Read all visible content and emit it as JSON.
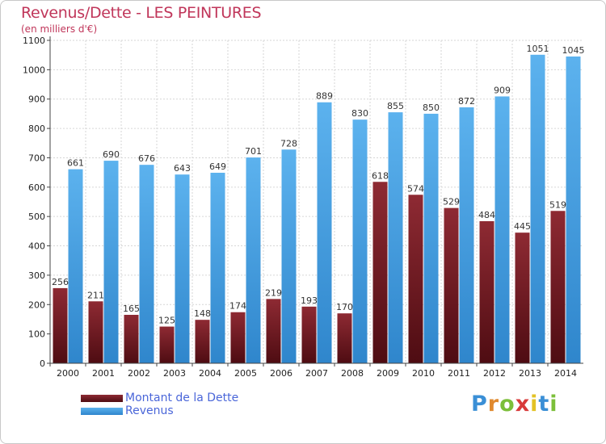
{
  "header": {
    "title": "Revenus/Dette - LES PEINTURES",
    "subtitle": "(en milliers d'€)"
  },
  "logo": {
    "text": "Proxiti",
    "letters": [
      {
        "ch": "P",
        "color": "#3a8fd6"
      },
      {
        "ch": "r",
        "color": "#e0892e"
      },
      {
        "ch": "o",
        "color": "#7cbf3a"
      },
      {
        "ch": "x",
        "color": "#d83a3a"
      },
      {
        "ch": "i",
        "color": "#e3c226"
      },
      {
        "ch": "t",
        "color": "#3a8fd6"
      },
      {
        "ch": "i",
        "color": "#7cbf3a"
      }
    ]
  },
  "colors": {
    "dette": "#7a1c24",
    "revenus": "#4aa3e4"
  },
  "chart_data": {
    "type": "bar",
    "categories": [
      "2000",
      "2001",
      "2002",
      "2003",
      "2004",
      "2005",
      "2006",
      "2007",
      "2008",
      "2009",
      "2010",
      "2011",
      "2012",
      "2013",
      "2014"
    ],
    "series": [
      {
        "name": "Montant de la Dette",
        "values": [
          256,
          211,
          165,
          125,
          148,
          174,
          219,
          193,
          170,
          618,
          574,
          529,
          484,
          445,
          519
        ]
      },
      {
        "name": "Revenus",
        "values": [
          661,
          690,
          676,
          643,
          649,
          701,
          728,
          889,
          830,
          855,
          850,
          872,
          909,
          1051,
          1045
        ]
      }
    ],
    "ylim": [
      0,
      1100
    ],
    "yticks": [
      0,
      100,
      200,
      300,
      400,
      500,
      600,
      700,
      800,
      900,
      1000,
      1100
    ],
    "grid": true,
    "legend": "bottom-left"
  }
}
